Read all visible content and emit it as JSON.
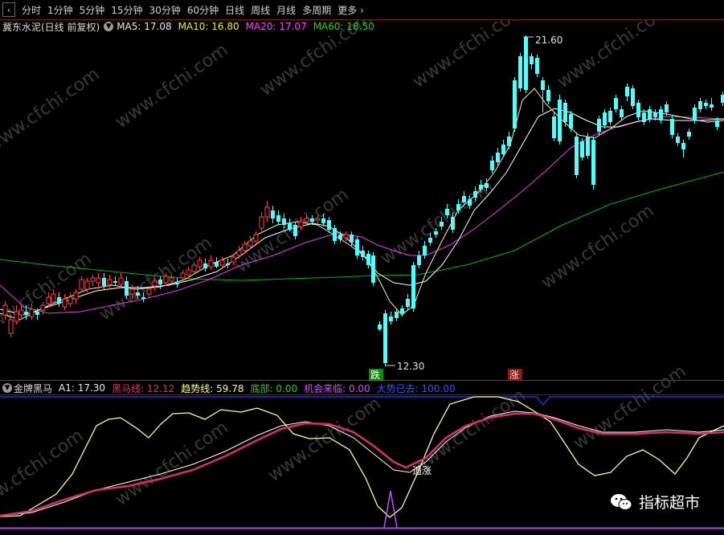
{
  "toolbar": {
    "periods": [
      "分时",
      "1分钟",
      "5分钟",
      "15分钟",
      "30分钟",
      "60分钟",
      "日线",
      "周线",
      "月线",
      "多周期",
      "更多"
    ]
  },
  "info": {
    "stock": "冀东水泥(日线 前复权)",
    "ma5": "MA5: 17.08",
    "ma10": "MA10: 16.80",
    "ma20": "MA20: 17.07",
    "ma60": "MA60: 18.50"
  },
  "price_labels": {
    "high": "21.60",
    "low": "12.30",
    "fall_signal": "跌",
    "rise_signal": "涨"
  },
  "indicator": {
    "name": "金牌黑马",
    "a1": "A1: 17.30",
    "heima": "黑马线: 12.12",
    "trend": "趋势线: 59.78",
    "bottom": "底部: 0.00",
    "opportunity": "机会来临: 0.00",
    "gone": "大势已去: 100.00",
    "chase_label": "追涨"
  },
  "watermark": {
    "site": "www.cfchi.com",
    "badge": "指标超市"
  },
  "colors": {
    "up": "#ff4040",
    "down": "#54ffff",
    "ma5": "#ffffff",
    "ma10": "#f0f000",
    "ma20": "#ff40ff",
    "ma60": "#00c000",
    "trend_line": "#ffff80",
    "heima_line": "#d6306a",
    "gone_line": "#3d3dff"
  },
  "chart_data": {
    "type": "candlestick",
    "price_high": 21.6,
    "price_low": 12.3,
    "indicator_lines": [
      "A1",
      "黑马线",
      "趋势线",
      "底部",
      "机会来临",
      "大势已去"
    ]
  }
}
